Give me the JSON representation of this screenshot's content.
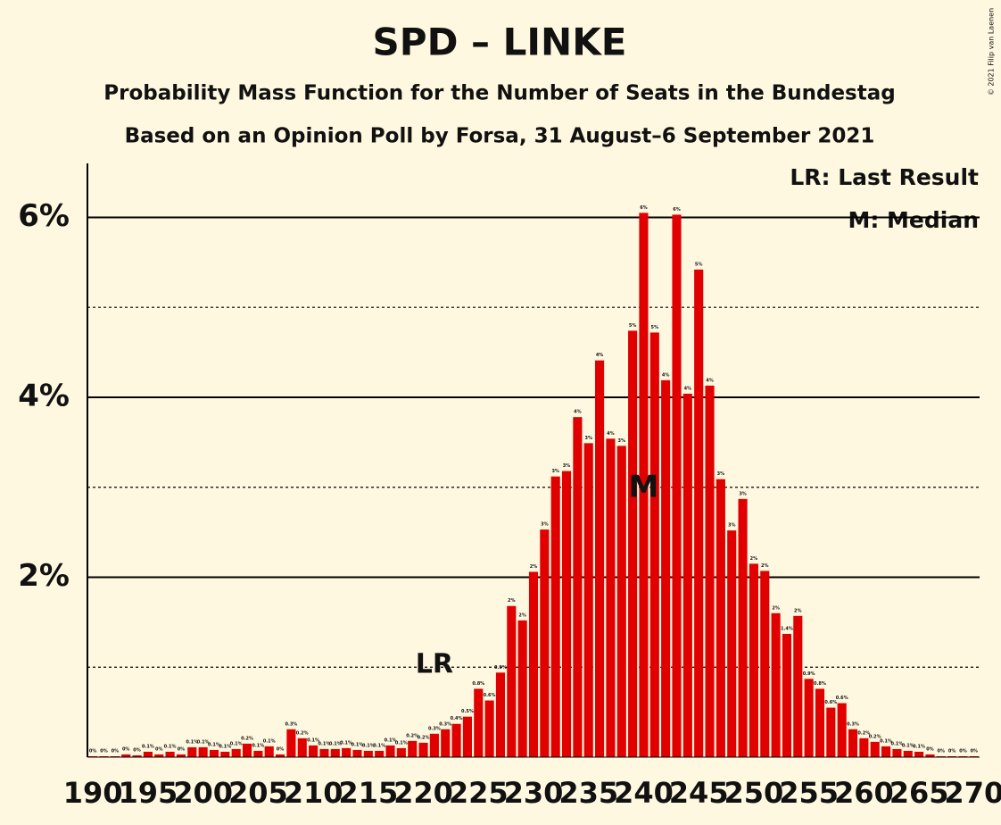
{
  "chart_data": {
    "type": "bar",
    "title": "SPD – LINKE",
    "subtitle": "Probability Mass Function for the Number of Seats in the Bundestag",
    "subtitle2": "Based on an Opinion Poll by Forsa, 31 August–6 September 2021",
    "legend": [
      "LR: Last Result",
      "M: Median"
    ],
    "annotations": [
      {
        "text": "LR",
        "x": 221
      },
      {
        "text": "M",
        "x": 240
      }
    ],
    "copyright": "© 2021 Filip van Laenen",
    "color": "#e10000",
    "background": "#fff8e0",
    "x": [
      190,
      191,
      192,
      193,
      194,
      195,
      196,
      197,
      198,
      199,
      200,
      201,
      202,
      203,
      204,
      205,
      206,
      207,
      208,
      209,
      210,
      211,
      212,
      213,
      214,
      215,
      216,
      217,
      218,
      219,
      220,
      221,
      222,
      223,
      224,
      225,
      226,
      227,
      228,
      229,
      230,
      231,
      232,
      233,
      234,
      235,
      236,
      237,
      238,
      239,
      240,
      241,
      242,
      243,
      244,
      245,
      246,
      247,
      248,
      249,
      250,
      251,
      252,
      253,
      254,
      255,
      256,
      257,
      258,
      259,
      260,
      261,
      262,
      263,
      264,
      265,
      266,
      267,
      268,
      269,
      270
    ],
    "values": [
      0.01,
      0.01,
      0.01,
      0.03,
      0.02,
      0.06,
      0.03,
      0.06,
      0.03,
      0.11,
      0.11,
      0.08,
      0.06,
      0.09,
      0.15,
      0.07,
      0.12,
      0.03,
      0.31,
      0.21,
      0.13,
      0.09,
      0.09,
      0.1,
      0.08,
      0.07,
      0.07,
      0.13,
      0.1,
      0.18,
      0.16,
      0.26,
      0.31,
      0.37,
      0.45,
      0.76,
      0.63,
      0.94,
      1.68,
      1.52,
      2.06,
      2.53,
      3.12,
      3.18,
      3.78,
      3.49,
      4.41,
      3.54,
      3.46,
      4.74,
      6.05,
      4.72,
      4.19,
      6.03,
      4.04,
      5.42,
      4.13,
      3.09,
      2.52,
      2.87,
      2.15,
      2.07,
      1.6,
      1.37,
      1.57,
      0.87,
      0.76,
      0.55,
      0.6,
      0.31,
      0.21,
      0.17,
      0.12,
      0.09,
      0.07,
      0.06,
      0.03,
      0.01,
      0.01,
      0.01,
      0.01
    ],
    "value_labels": [
      "0%",
      "0%",
      "0%",
      "0%",
      "0%",
      "0.1%",
      "0%",
      "0.1%",
      "0%",
      "0.1%",
      "0.1%",
      "0.1%",
      "0.1%",
      "0.1%",
      "0.2%",
      "0.1%",
      "0.1%",
      "0%",
      "0.3%",
      "0.2%",
      "0.1%",
      "0.1%",
      "0.1%",
      "0.1%",
      "0.1%",
      "0.1%",
      "0.1%",
      "0.1%",
      "0.1%",
      "0.2%",
      "0.2%",
      "0.3%",
      "0.3%",
      "0.4%",
      "0.5%",
      "0.8%",
      "0.6%",
      "0.9%",
      "2%",
      "2%",
      "2%",
      "3%",
      "3%",
      "3%",
      "4%",
      "3%",
      "4%",
      "4%",
      "3%",
      "5%",
      "6%",
      "5%",
      "4%",
      "6%",
      "4%",
      "5%",
      "4%",
      "3%",
      "3%",
      "3%",
      "2%",
      "2%",
      "2%",
      "1.4%",
      "2%",
      "0.9%",
      "0.8%",
      "0.6%",
      "0.6%",
      "0.3%",
      "0.2%",
      "0.2%",
      "0.1%",
      "0.1%",
      "0.1%",
      "0.1%",
      "0%",
      "0%",
      "0%",
      "0%",
      "0%"
    ],
    "xlim": [
      189.5,
      270.5
    ],
    "xticks": [
      190,
      195,
      200,
      205,
      210,
      215,
      220,
      225,
      230,
      235,
      240,
      245,
      250,
      255,
      260,
      265,
      270
    ],
    "ylim": [
      0,
      6.6
    ],
    "yticks": [
      {
        "value": 2,
        "label": "2%"
      },
      {
        "value": 4,
        "label": "4%"
      },
      {
        "value": 6,
        "label": "6%"
      }
    ],
    "minor_yticks": [
      1,
      3,
      5
    ],
    "grid": true
  }
}
